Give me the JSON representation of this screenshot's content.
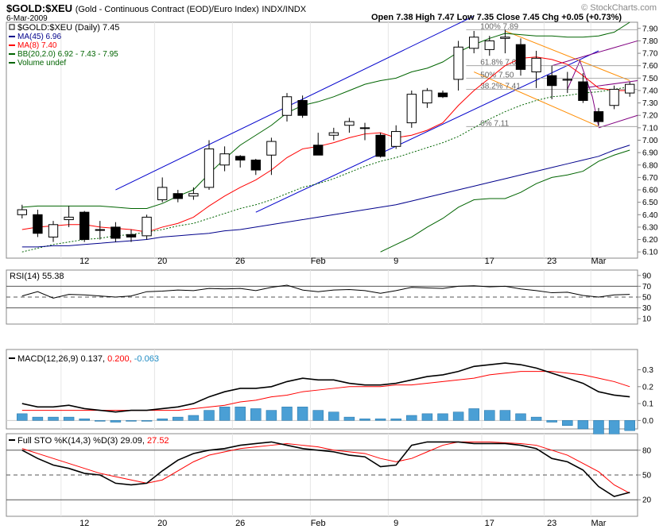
{
  "header": {
    "symbol": "$GOLD:$XEU",
    "description": "(Gold - Continuous Contract (EOD)/Euro Index)",
    "exchange": "INDX/INDX",
    "date": "6-Mar-2009",
    "open_label": "Open",
    "open": "7.38",
    "high_label": "High",
    "high": "7.47",
    "low_label": "Low",
    "low": "7.35",
    "close_label": "Close",
    "close": "7.45",
    "chg_label": "Chg",
    "chg": "+0.05 (+0.73%)",
    "copyright": "© StockCharts.com"
  },
  "colors": {
    "ma45": "#00008b",
    "ma8": "#ff0000",
    "bb": "#006400",
    "up": "#ffffff",
    "down": "#000000",
    "channel": "#0000cc",
    "fan": "#ff8c00",
    "purple": "#800080",
    "volume": "#006400"
  },
  "chart_data": [
    {
      "type": "candlestick",
      "title": "$GOLD:$XEU (Daily) 7.45",
      "legend": [
        {
          "label": "$GOLD:$XEU (Daily) 7.45",
          "color": "#000000"
        },
        {
          "label": "MA(45) 6.96",
          "color": "#00008b"
        },
        {
          "label": "MA(8) 7.40",
          "color": "#ff0000"
        },
        {
          "label": "BB(20,2.0) 6.92 - 7.43 - 7.95",
          "color": "#006400"
        },
        {
          "label": "Volume undef",
          "color": "#006400"
        }
      ],
      "ylim": [
        6.05,
        7.95
      ],
      "yticks": [
        6.1,
        6.2,
        6.3,
        6.4,
        6.5,
        6.6,
        6.7,
        6.8,
        6.9,
        7.0,
        7.1,
        7.2,
        7.3,
        7.4,
        7.5,
        7.6,
        7.7,
        7.8,
        7.9
      ],
      "xticks": [
        "12",
        "20",
        "26",
        "Feb",
        "9",
        "17",
        "23",
        "Mar"
      ],
      "candles": [
        {
          "o": 6.4,
          "h": 6.48,
          "l": 6.37,
          "c": 6.44
        },
        {
          "o": 6.4,
          "h": 6.44,
          "l": 6.22,
          "c": 6.25
        },
        {
          "o": 6.22,
          "h": 6.35,
          "l": 6.18,
          "c": 6.32
        },
        {
          "o": 6.36,
          "h": 6.47,
          "l": 6.3,
          "c": 6.38
        },
        {
          "o": 6.42,
          "h": 6.43,
          "l": 6.18,
          "c": 6.2
        },
        {
          "o": 6.28,
          "h": 6.35,
          "l": 6.2,
          "c": 6.28
        },
        {
          "o": 6.3,
          "h": 6.34,
          "l": 6.18,
          "c": 6.21
        },
        {
          "o": 6.24,
          "h": 6.28,
          "l": 6.18,
          "c": 6.22
        },
        {
          "o": 6.23,
          "h": 6.4,
          "l": 6.2,
          "c": 6.38
        },
        {
          "o": 6.52,
          "h": 6.7,
          "l": 6.5,
          "c": 6.62
        },
        {
          "o": 6.57,
          "h": 6.6,
          "l": 6.5,
          "c": 6.53
        },
        {
          "o": 6.55,
          "h": 6.62,
          "l": 6.52,
          "c": 6.57
        },
        {
          "o": 6.62,
          "h": 7.0,
          "l": 6.6,
          "c": 6.93
        },
        {
          "o": 6.8,
          "h": 6.95,
          "l": 6.75,
          "c": 6.89
        },
        {
          "o": 6.87,
          "h": 6.88,
          "l": 6.78,
          "c": 6.84
        },
        {
          "o": 6.84,
          "h": 6.85,
          "l": 6.72,
          "c": 6.76
        },
        {
          "o": 6.88,
          "h": 7.02,
          "l": 6.72,
          "c": 6.99
        },
        {
          "o": 7.2,
          "h": 7.38,
          "l": 7.15,
          "c": 7.35
        },
        {
          "o": 7.32,
          "h": 7.36,
          "l": 7.18,
          "c": 7.2
        },
        {
          "o": 6.96,
          "h": 7.06,
          "l": 6.88,
          "c": 6.88
        },
        {
          "o": 7.04,
          "h": 7.1,
          "l": 7.0,
          "c": 7.06
        },
        {
          "o": 7.12,
          "h": 7.18,
          "l": 7.06,
          "c": 7.15
        },
        {
          "o": 7.1,
          "h": 7.14,
          "l": 7.0,
          "c": 7.1
        },
        {
          "o": 7.04,
          "h": 7.06,
          "l": 6.86,
          "c": 6.87
        },
        {
          "o": 6.95,
          "h": 7.12,
          "l": 6.93,
          "c": 7.07
        },
        {
          "o": 7.14,
          "h": 7.4,
          "l": 7.1,
          "c": 7.37
        },
        {
          "o": 7.3,
          "h": 7.42,
          "l": 7.26,
          "c": 7.4
        },
        {
          "o": 7.38,
          "h": 7.4,
          "l": 7.34,
          "c": 7.35
        },
        {
          "o": 7.49,
          "h": 7.8,
          "l": 7.4,
          "c": 7.75
        },
        {
          "o": 7.74,
          "h": 7.88,
          "l": 7.7,
          "c": 7.83
        },
        {
          "o": 7.73,
          "h": 7.84,
          "l": 7.68,
          "c": 7.8
        },
        {
          "o": 7.82,
          "h": 7.89,
          "l": 7.7,
          "c": 7.83
        },
        {
          "o": 7.77,
          "h": 7.82,
          "l": 7.52,
          "c": 7.57
        },
        {
          "o": 7.55,
          "h": 7.72,
          "l": 7.42,
          "c": 7.66
        },
        {
          "o": 7.52,
          "h": 7.6,
          "l": 7.33,
          "c": 7.44
        },
        {
          "o": 7.49,
          "h": 7.55,
          "l": 7.38,
          "c": 7.49
        },
        {
          "o": 7.47,
          "h": 7.54,
          "l": 7.3,
          "c": 7.32
        },
        {
          "o": 7.23,
          "h": 7.26,
          "l": 7.12,
          "c": 7.15
        },
        {
          "o": 7.28,
          "h": 7.44,
          "l": 7.25,
          "c": 7.41
        },
        {
          "o": 7.38,
          "h": 7.47,
          "l": 7.35,
          "c": 7.45
        }
      ],
      "ma45": [
        6.14,
        6.14,
        6.15,
        6.15,
        6.16,
        6.17,
        6.18,
        6.19,
        6.2,
        6.22,
        6.23,
        6.24,
        6.25,
        6.27,
        6.28,
        6.3,
        6.32,
        6.34,
        6.36,
        6.38,
        6.4,
        6.42,
        6.44,
        6.46,
        6.48,
        6.51,
        6.54,
        6.57,
        6.6,
        6.63,
        6.66,
        6.69,
        6.72,
        6.75,
        6.78,
        6.81,
        6.84,
        6.87,
        6.92,
        6.96
      ],
      "ma8": [
        6.28,
        6.3,
        6.31,
        6.32,
        6.32,
        6.3,
        6.29,
        6.28,
        6.26,
        6.3,
        6.33,
        6.38,
        6.47,
        6.55,
        6.62,
        6.68,
        6.76,
        6.86,
        6.93,
        6.95,
        6.98,
        7.02,
        7.05,
        7.06,
        7.02,
        7.04,
        7.08,
        7.14,
        7.28,
        7.4,
        7.5,
        7.6,
        7.66,
        7.67,
        7.65,
        7.61,
        7.52,
        7.42,
        7.4,
        7.4
      ],
      "bb_mid": [
        6.1,
        6.13,
        6.16,
        6.18,
        6.2,
        6.21,
        6.23,
        6.24,
        6.26,
        6.28,
        6.31,
        6.33,
        6.37,
        6.41,
        6.45,
        6.48,
        6.52,
        6.57,
        6.62,
        6.65,
        6.69,
        6.74,
        6.79,
        6.83,
        6.86,
        6.9,
        6.94,
        6.98,
        7.03,
        7.1,
        7.17,
        7.23,
        7.28,
        7.32,
        7.35,
        7.36,
        7.38,
        7.39,
        7.41,
        7.43
      ],
      "bb_upper": [
        6.46,
        6.47,
        6.47,
        6.47,
        6.47,
        6.47,
        6.46,
        6.45,
        6.45,
        6.49,
        6.55,
        6.6,
        6.73,
        6.85,
        6.96,
        7.04,
        7.12,
        7.22,
        7.28,
        7.31,
        7.35,
        7.4,
        7.45,
        7.48,
        7.5,
        7.55,
        7.58,
        7.63,
        7.71,
        7.77,
        7.82,
        7.86,
        7.85,
        7.84,
        7.84,
        7.83,
        7.83,
        7.84,
        7.87,
        7.95
      ],
      "bb_lower": [
        null,
        null,
        null,
        null,
        null,
        null,
        null,
        null,
        null,
        null,
        null,
        null,
        null,
        null,
        null,
        null,
        null,
        null,
        null,
        null,
        null,
        null,
        null,
        6.1,
        6.16,
        6.22,
        6.3,
        6.37,
        6.46,
        6.52,
        6.53,
        6.53,
        6.58,
        6.65,
        6.7,
        6.72,
        6.75,
        6.83,
        6.88,
        6.92
      ],
      "annotations": [
        {
          "text": "100% 7.89",
          "y": 7.89
        },
        {
          "text": "61.8% 7.60",
          "y": 7.6
        },
        {
          "text": "50% 7.50",
          "y": 7.5
        },
        {
          "text": "38.2% 7.41",
          "y": 7.41
        },
        {
          "text": "0% 7.11",
          "y": 7.11
        }
      ]
    },
    {
      "type": "line",
      "title": "RSI(14) 55.38",
      "ylim": [
        0,
        100
      ],
      "yticks": [
        10,
        30,
        50,
        70,
        90
      ],
      "values": [
        52,
        60,
        48,
        55,
        54,
        52,
        50,
        52,
        60,
        61,
        63,
        62,
        66,
        65,
        66,
        62,
        68,
        72,
        63,
        60,
        63,
        64,
        62,
        57,
        62,
        68,
        67,
        66,
        70,
        71,
        69,
        70,
        65,
        62,
        58,
        59,
        53,
        50,
        54,
        55
      ]
    },
    {
      "type": "line",
      "title": "MACD(12,26,9) 0.137, 0.200, -0.063",
      "legend": [
        {
          "label": "MACD(12,26,9) 0.137,",
          "color": "#000000"
        },
        {
          "label": "0.200,",
          "color": "#ff0000"
        },
        {
          "label": "-0.063",
          "color": "#1e8bc3"
        }
      ],
      "ylim": [
        -0.05,
        0.42
      ],
      "yticks": [
        0.0,
        0.1,
        0.2,
        0.3
      ],
      "macd": [
        0.1,
        0.08,
        0.08,
        0.09,
        0.07,
        0.06,
        0.05,
        0.06,
        0.06,
        0.07,
        0.08,
        0.1,
        0.14,
        0.17,
        0.19,
        0.19,
        0.2,
        0.23,
        0.25,
        0.24,
        0.24,
        0.22,
        0.21,
        0.21,
        0.22,
        0.24,
        0.26,
        0.27,
        0.29,
        0.32,
        0.33,
        0.34,
        0.33,
        0.31,
        0.28,
        0.25,
        0.22,
        0.17,
        0.15,
        0.14
      ],
      "signal": [
        0.06,
        0.06,
        0.06,
        0.06,
        0.06,
        0.06,
        0.06,
        0.06,
        0.06,
        0.06,
        0.06,
        0.07,
        0.08,
        0.09,
        0.11,
        0.12,
        0.14,
        0.15,
        0.17,
        0.18,
        0.19,
        0.2,
        0.2,
        0.2,
        0.21,
        0.21,
        0.22,
        0.23,
        0.24,
        0.25,
        0.27,
        0.28,
        0.29,
        0.29,
        0.29,
        0.28,
        0.27,
        0.25,
        0.23,
        0.2
      ],
      "histogram": [
        0.04,
        0.02,
        0.02,
        0.02,
        0.01,
        0.0,
        -0.01,
        0.0,
        0.0,
        0.01,
        0.02,
        0.03,
        0.06,
        0.08,
        0.08,
        0.07,
        0.06,
        0.08,
        0.08,
        0.06,
        0.05,
        0.02,
        0.01,
        0.01,
        0.01,
        0.03,
        0.04,
        0.04,
        0.05,
        0.07,
        0.06,
        0.06,
        0.04,
        0.02,
        -0.01,
        -0.03,
        -0.05,
        -0.08,
        -0.08,
        -0.06
      ]
    },
    {
      "type": "line",
      "title": "Full STO %K(14,3) %D(3) 29.09, 27.52",
      "legend": [
        {
          "label": "Full STO %K(14,3) %D(3) 29.09,",
          "color": "#000000"
        },
        {
          "label": "27.52",
          "color": "#ff0000"
        }
      ],
      "ylim": [
        0,
        100
      ],
      "yticks": [
        20,
        50,
        80
      ],
      "k": [
        80,
        70,
        62,
        58,
        52,
        50,
        40,
        38,
        40,
        55,
        68,
        76,
        80,
        82,
        86,
        88,
        90,
        86,
        82,
        80,
        78,
        74,
        72,
        60,
        62,
        86,
        90,
        90,
        90,
        88,
        88,
        88,
        86,
        82,
        70,
        66,
        56,
        36,
        24,
        29
      ],
      "d": [
        82,
        76,
        70,
        64,
        58,
        52,
        48,
        44,
        40,
        44,
        55,
        66,
        74,
        78,
        82,
        84,
        86,
        88,
        86,
        84,
        80,
        78,
        76,
        70,
        66,
        70,
        78,
        86,
        90,
        90,
        90,
        89,
        88,
        86,
        80,
        74,
        64,
        54,
        38,
        28
      ]
    }
  ]
}
